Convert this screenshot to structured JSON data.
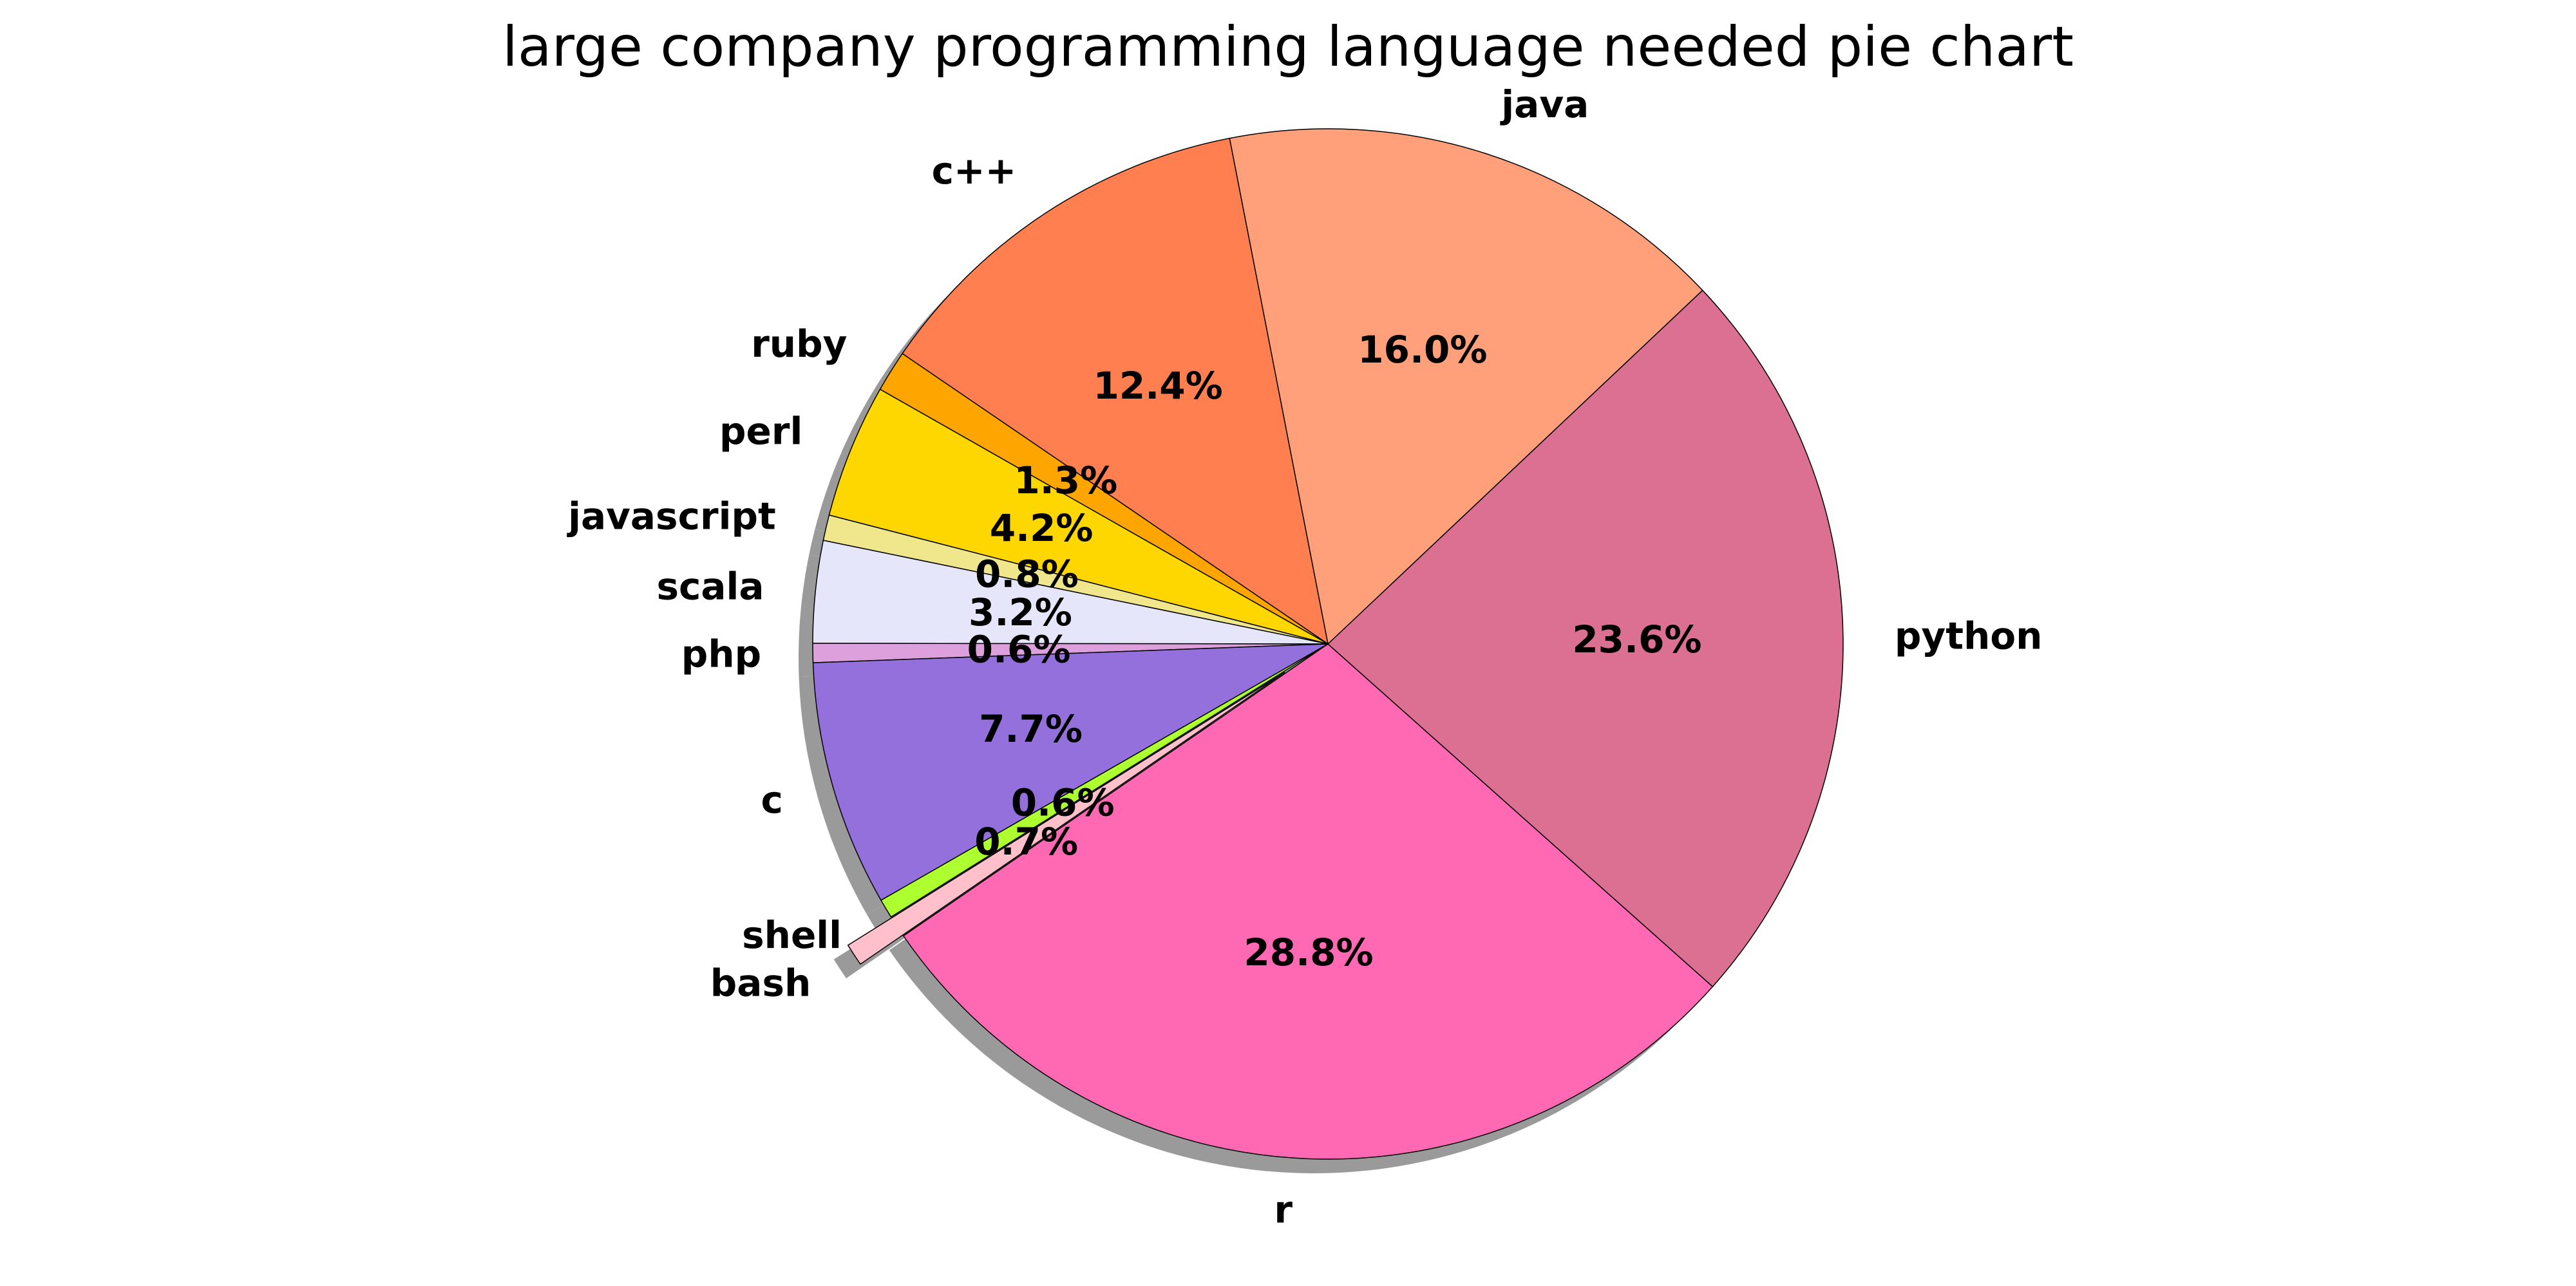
{
  "chart_data": {
    "type": "pie",
    "title": "large company programming language needed pie chart",
    "start_angle_deg": -148,
    "direction": "counterclockwise",
    "shadow": true,
    "slices": [
      {
        "label": "bash",
        "value": 0.7,
        "pct_text": "0.7%",
        "color": "#FFC0CB",
        "explode": true
      },
      {
        "label": "r",
        "value": 28.8,
        "pct_text": "28.8%",
        "color": "#FF69B4",
        "explode": false
      },
      {
        "label": "python",
        "value": 23.6,
        "pct_text": "23.6%",
        "color": "#DB7093",
        "explode": false
      },
      {
        "label": "java",
        "value": 16.0,
        "pct_text": "16.0%",
        "color": "#FFA07A",
        "explode": false
      },
      {
        "label": "c++",
        "value": 12.4,
        "pct_text": "12.4%",
        "color": "#FF7F50",
        "explode": false
      },
      {
        "label": "ruby",
        "value": 1.3,
        "pct_text": "1.3%",
        "color": "#FFA500",
        "explode": false
      },
      {
        "label": "perl",
        "value": 4.2,
        "pct_text": "4.2%",
        "color": "#FFD700",
        "explode": false
      },
      {
        "label": "javascript",
        "value": 0.8,
        "pct_text": "0.8%",
        "color": "#F0E68C",
        "explode": false
      },
      {
        "label": "scala",
        "value": 3.2,
        "pct_text": "3.2%",
        "color": "#E6E6FA",
        "explode": false
      },
      {
        "label": "php",
        "value": 0.6,
        "pct_text": "0.6%",
        "color": "#DDA0DD",
        "explode": false
      },
      {
        "label": "c",
        "value": 7.7,
        "pct_text": "7.7%",
        "color": "#9370DB",
        "explode": false
      },
      {
        "label": "shell",
        "value": 0.6,
        "pct_text": "0.6%",
        "color": "#ADFF2F",
        "explode": false
      }
    ]
  }
}
